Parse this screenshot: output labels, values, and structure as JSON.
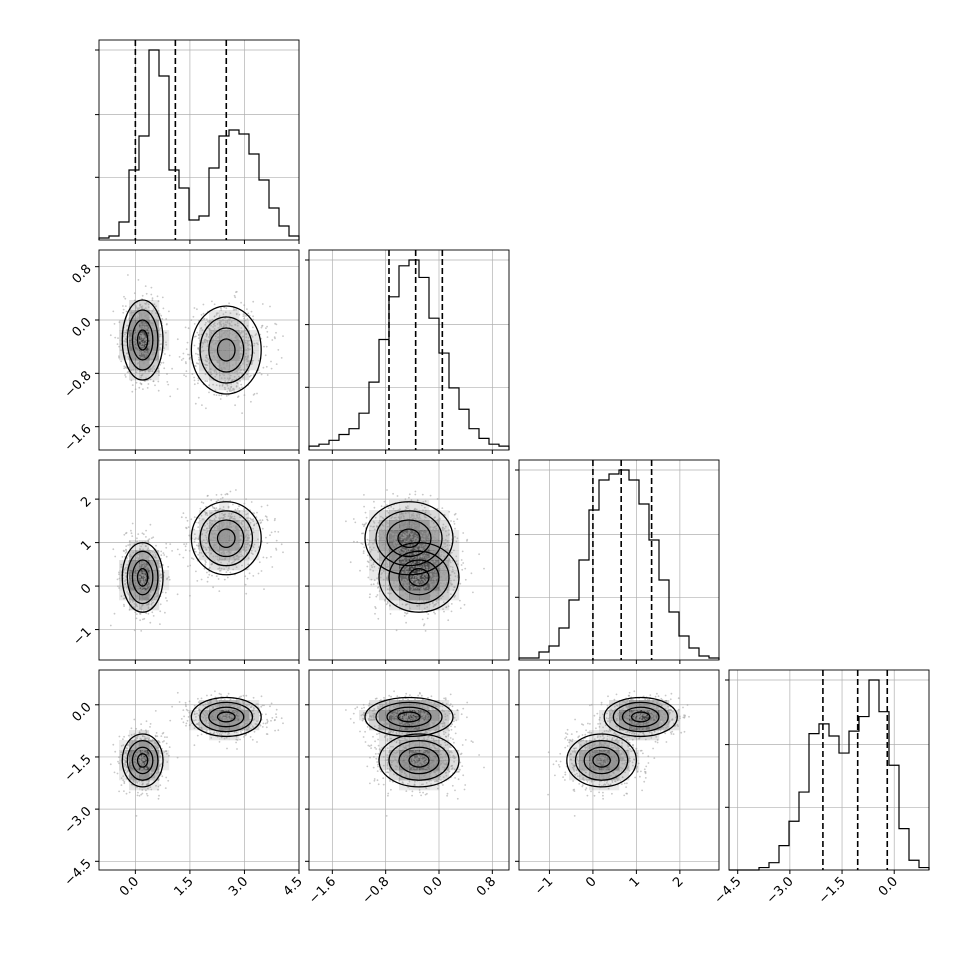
{
  "chart_data": {
    "type": "corner",
    "grid": true,
    "params": [
      {
        "range": [
          -1.0,
          4.5
        ],
        "ticks": [
          "0.0",
          "1.5",
          "3.0",
          "4.5"
        ],
        "tick_values": [
          0.0,
          1.5,
          3.0,
          4.5
        ],
        "quantiles": [
          0.0,
          1.1,
          2.5
        ],
        "hist": [
          0.01,
          0.02,
          0.09,
          0.35,
          0.52,
          0.95,
          0.82,
          0.35,
          0.26,
          0.1,
          0.12,
          0.36,
          0.52,
          0.55,
          0.53,
          0.43,
          0.3,
          0.16,
          0.07,
          0.02
        ]
      },
      {
        "range": [
          -1.95,
          1.05
        ],
        "ticks": [
          "-1.6",
          "-0.8",
          "0.0",
          "0.8"
        ],
        "tick_values": [
          -1.6,
          -0.8,
          0.0,
          0.8
        ],
        "quantiles": [
          -0.75,
          -0.35,
          0.05
        ],
        "hist": [
          0.02,
          0.03,
          0.05,
          0.08,
          0.11,
          0.19,
          0.35,
          0.57,
          0.79,
          0.95,
          0.98,
          0.89,
          0.68,
          0.5,
          0.32,
          0.21,
          0.11,
          0.06,
          0.03,
          0.02
        ]
      },
      {
        "range": [
          -1.7,
          2.9
        ],
        "ticks": [
          "-1",
          "0",
          "1",
          "2"
        ],
        "tick_values": [
          -1,
          0,
          1,
          2
        ],
        "quantiles": [
          0.0,
          0.65,
          1.35
        ],
        "hist": [
          0.01,
          0.01,
          0.04,
          0.07,
          0.16,
          0.3,
          0.5,
          0.75,
          0.9,
          0.93,
          0.95,
          0.9,
          0.78,
          0.6,
          0.4,
          0.24,
          0.12,
          0.06,
          0.02,
          0.01
        ]
      },
      {
        "range": [
          -4.75,
          1.0
        ],
        "ticks": [
          "-4.5",
          "-3.0",
          "-1.5",
          "0.0"
        ],
        "tick_values": [
          -4.5,
          -3.0,
          -1.5,
          0.0
        ],
        "quantiles": [
          -2.05,
          -1.05,
          -0.2
        ],
        "hist": [
          0.0,
          0.0,
          0.0,
          0.01,
          0.03,
          0.1,
          0.2,
          0.32,
          0.56,
          0.6,
          0.55,
          0.48,
          0.57,
          0.63,
          0.78,
          0.65,
          0.43,
          0.17,
          0.04,
          0.01
        ]
      }
    ],
    "modes": [
      {
        "mean": [
          0.2,
          -0.3,
          0.2,
          -1.6
        ],
        "sd": [
          0.28,
          0.3,
          0.4,
          0.38
        ],
        "weight": 0.5
      },
      {
        "mean": [
          2.5,
          -0.45,
          1.1,
          -0.35
        ],
        "sd": [
          0.48,
          0.33,
          0.42,
          0.28
        ],
        "weight": 0.5
      }
    ],
    "colors": {
      "axis": "#000000",
      "grid": "#b0b0b0",
      "points": "#9a9a9a",
      "density": "#000000"
    }
  }
}
